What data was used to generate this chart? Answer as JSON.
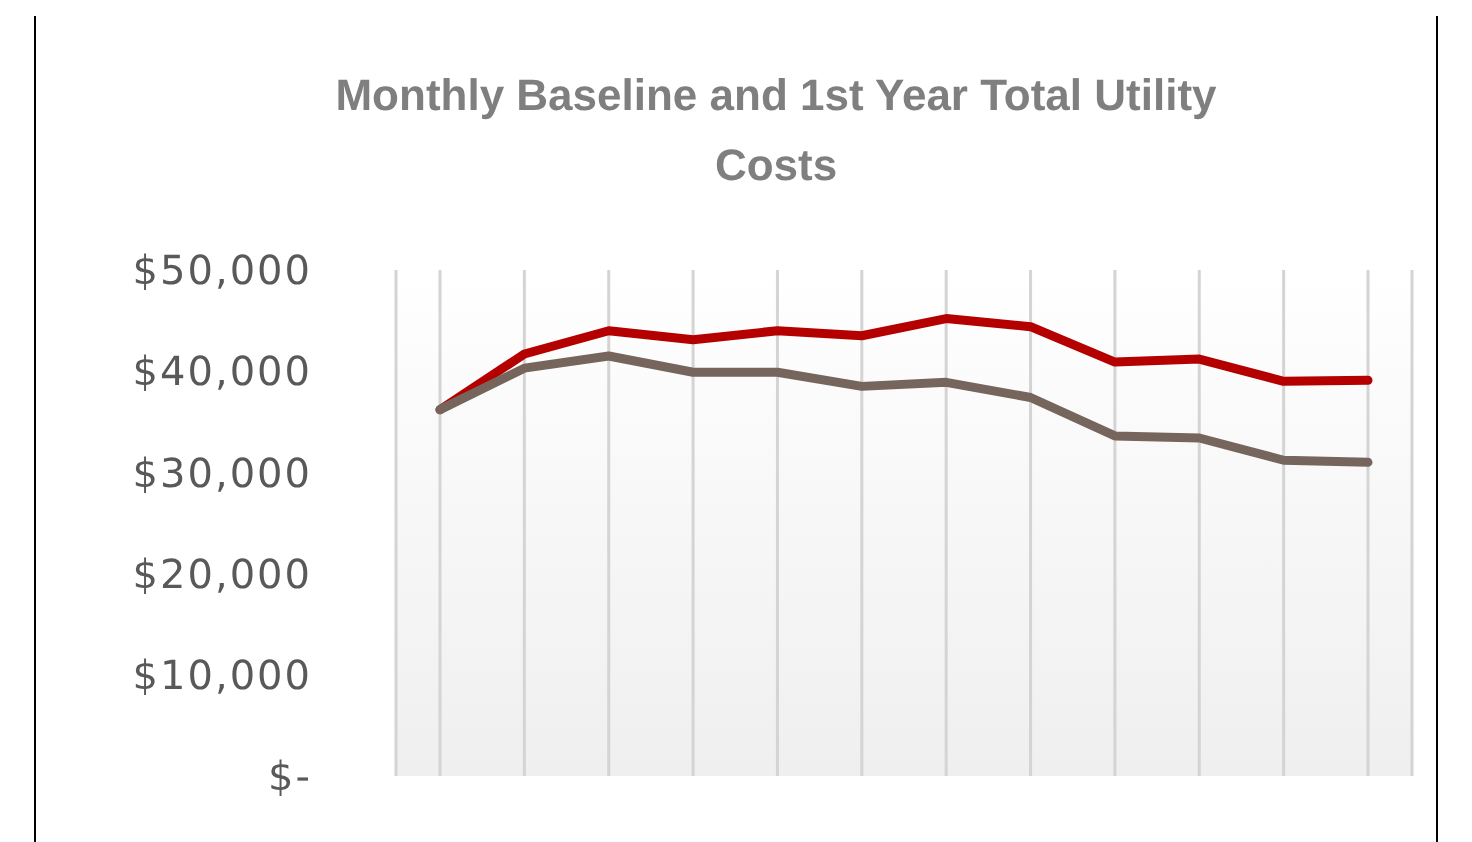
{
  "chart_data": {
    "type": "line",
    "title": "Monthly Baseline and 1st Year Total Utility Costs",
    "categories": [
      null,
      null,
      null,
      null,
      null,
      null,
      null,
      null,
      null,
      null,
      null,
      null
    ],
    "series": [
      {
        "color": "#b50000",
        "values": [
          36200,
          41700,
          44000,
          43100,
          44000,
          43500,
          45200,
          44400,
          40900,
          41200,
          39000,
          39100
        ]
      },
      {
        "color": "#75655c",
        "values": [
          36200,
          40300,
          41500,
          39900,
          39900,
          38500,
          38900,
          37400,
          33600,
          33400,
          31200,
          31000
        ]
      }
    ],
    "ylim": [
      0,
      50000
    ],
    "yticks": [
      {
        "value": 0,
        "label": "$-"
      },
      {
        "value": 10000,
        "label": "$10,000"
      },
      {
        "value": 20000,
        "label": "$20,000"
      },
      {
        "value": 30000,
        "label": "$30,000"
      },
      {
        "value": 40000,
        "label": "$40,000"
      },
      {
        "value": 50000,
        "label": "$50,000"
      }
    ],
    "grid": "x",
    "marker": "none",
    "line_style": "solid",
    "legend": false,
    "tick_labels": "y"
  }
}
